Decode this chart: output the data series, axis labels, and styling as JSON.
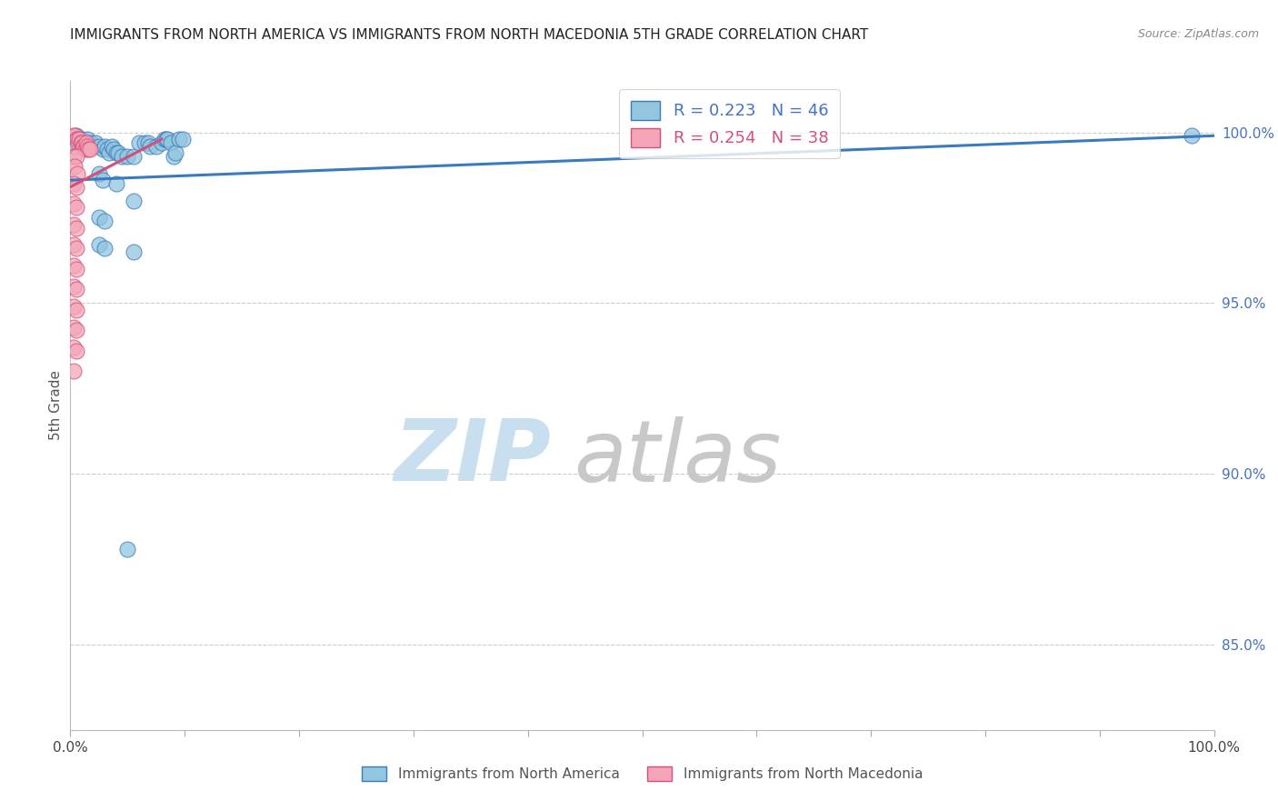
{
  "title": "IMMIGRANTS FROM NORTH AMERICA VS IMMIGRANTS FROM NORTH MACEDONIA 5TH GRADE CORRELATION CHART",
  "source": "Source: ZipAtlas.com",
  "ylabel": "5th Grade",
  "yaxis_labels": [
    "100.0%",
    "95.0%",
    "90.0%",
    "85.0%"
  ],
  "yaxis_values": [
    1.0,
    0.95,
    0.9,
    0.85
  ],
  "xlim": [
    0.0,
    1.0
  ],
  "ylim": [
    0.825,
    1.015
  ],
  "legend_blue_label": "Immigrants from North America",
  "legend_pink_label": "Immigrants from North Macedonia",
  "R_blue": 0.223,
  "N_blue": 46,
  "R_pink": 0.254,
  "N_pink": 38,
  "color_blue": "#92c5de",
  "color_pink": "#f4a6b8",
  "color_blue_line": "#3a7abf",
  "color_pink_line": "#d44f7a",
  "title_color": "#222222",
  "axis_label_color": "#555555",
  "right_axis_color": "#4472c4",
  "watermark_zip_color": "#c8dff0",
  "watermark_atlas_color": "#c8c8c8",
  "blue_dots": [
    [
      0.005,
      0.999
    ],
    [
      0.01,
      0.998
    ],
    [
      0.012,
      0.997
    ],
    [
      0.015,
      0.998
    ],
    [
      0.018,
      0.997
    ],
    [
      0.02,
      0.996
    ],
    [
      0.022,
      0.997
    ],
    [
      0.025,
      0.996
    ],
    [
      0.028,
      0.995
    ],
    [
      0.03,
      0.996
    ],
    [
      0.032,
      0.995
    ],
    [
      0.034,
      0.994
    ],
    [
      0.036,
      0.996
    ],
    [
      0.038,
      0.995
    ],
    [
      0.04,
      0.994
    ],
    [
      0.042,
      0.994
    ],
    [
      0.045,
      0.993
    ],
    [
      0.05,
      0.993
    ],
    [
      0.055,
      0.993
    ],
    [
      0.06,
      0.997
    ],
    [
      0.065,
      0.997
    ],
    [
      0.068,
      0.997
    ],
    [
      0.07,
      0.996
    ],
    [
      0.075,
      0.996
    ],
    [
      0.08,
      0.997
    ],
    [
      0.082,
      0.998
    ],
    [
      0.084,
      0.998
    ],
    [
      0.085,
      0.998
    ],
    [
      0.088,
      0.997
    ],
    [
      0.09,
      0.993
    ],
    [
      0.092,
      0.994
    ],
    [
      0.095,
      0.998
    ],
    [
      0.098,
      0.998
    ],
    [
      0.025,
      0.988
    ],
    [
      0.028,
      0.986
    ],
    [
      0.04,
      0.985
    ],
    [
      0.055,
      0.98
    ],
    [
      0.025,
      0.975
    ],
    [
      0.03,
      0.974
    ],
    [
      0.025,
      0.967
    ],
    [
      0.03,
      0.966
    ],
    [
      0.055,
      0.965
    ],
    [
      0.05,
      0.878
    ],
    [
      0.98,
      0.999
    ],
    [
      0.003,
      0.997
    ],
    [
      0.004,
      0.996
    ]
  ],
  "pink_dots": [
    [
      0.003,
      0.999
    ],
    [
      0.004,
      0.999
    ],
    [
      0.005,
      0.998
    ],
    [
      0.006,
      0.998
    ],
    [
      0.007,
      0.997
    ],
    [
      0.008,
      0.998
    ],
    [
      0.009,
      0.997
    ],
    [
      0.01,
      0.997
    ],
    [
      0.011,
      0.996
    ],
    [
      0.012,
      0.996
    ],
    [
      0.013,
      0.995
    ],
    [
      0.014,
      0.997
    ],
    [
      0.015,
      0.996
    ],
    [
      0.016,
      0.995
    ],
    [
      0.017,
      0.995
    ],
    [
      0.003,
      0.993
    ],
    [
      0.005,
      0.993
    ],
    [
      0.004,
      0.99
    ],
    [
      0.006,
      0.988
    ],
    [
      0.003,
      0.985
    ],
    [
      0.005,
      0.984
    ],
    [
      0.003,
      0.979
    ],
    [
      0.005,
      0.978
    ],
    [
      0.003,
      0.973
    ],
    [
      0.005,
      0.972
    ],
    [
      0.003,
      0.967
    ],
    [
      0.005,
      0.966
    ],
    [
      0.003,
      0.961
    ],
    [
      0.005,
      0.96
    ],
    [
      0.003,
      0.955
    ],
    [
      0.005,
      0.954
    ],
    [
      0.003,
      0.949
    ],
    [
      0.005,
      0.948
    ],
    [
      0.003,
      0.943
    ],
    [
      0.005,
      0.942
    ],
    [
      0.003,
      0.937
    ],
    [
      0.005,
      0.936
    ],
    [
      0.003,
      0.93
    ]
  ],
  "blue_line_x": [
    0.0,
    1.0
  ],
  "blue_line_y": [
    0.986,
    0.999
  ],
  "pink_line_x": [
    0.0,
    0.08
  ],
  "pink_line_y": [
    0.984,
    0.998
  ]
}
